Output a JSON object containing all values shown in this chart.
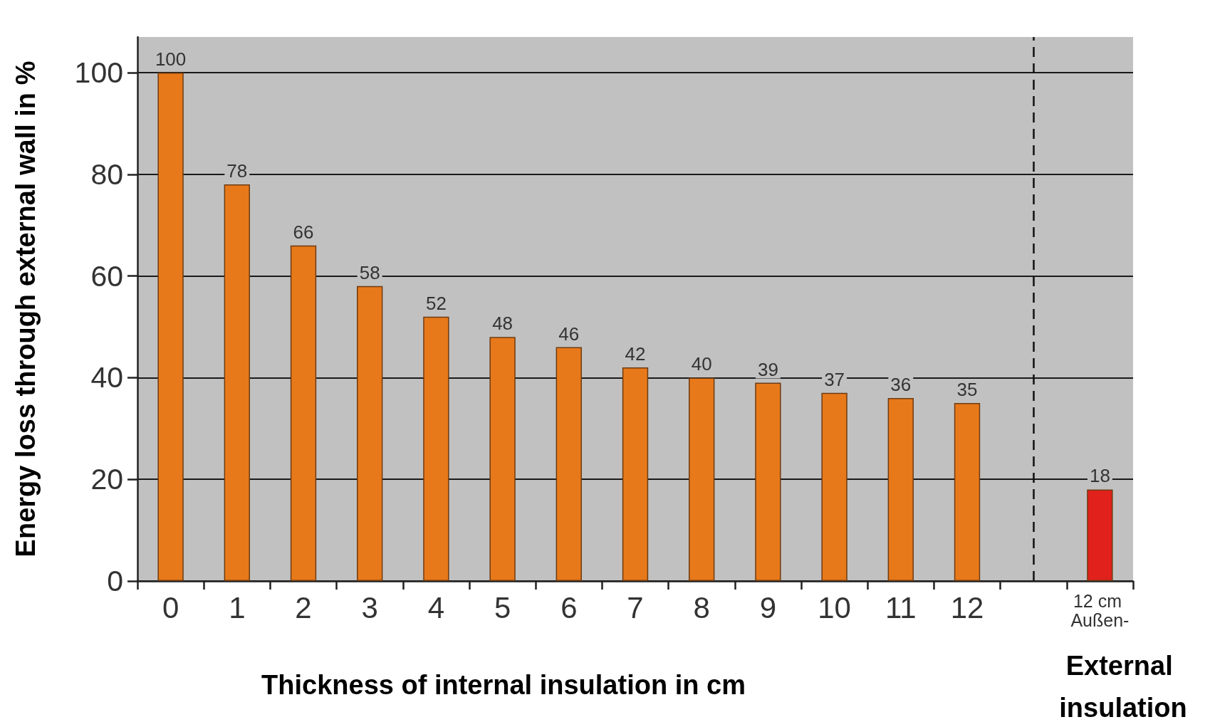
{
  "chart_data": {
    "type": "bar",
    "xlabel": "Thickness of internal insulation in cm",
    "ylabel": "Energy loss through external wall in %",
    "x": [
      0,
      1,
      2,
      3,
      4,
      5,
      6,
      7,
      8,
      9,
      10,
      11,
      12,
      14
    ],
    "values": [
      100,
      78,
      66,
      58,
      52,
      48,
      46,
      42,
      40,
      39,
      37,
      36,
      35,
      18
    ],
    "colors": [
      "#e8791a",
      "#e8791a",
      "#e8791a",
      "#e8791a",
      "#e8791a",
      "#e8791a",
      "#e8791a",
      "#e8791a",
      "#e8791a",
      "#e8791a",
      "#e8791a",
      "#e8791a",
      "#e8791a",
      "#e0211c"
    ],
    "data_labels": true,
    "xlim": [
      -0.5,
      14.5
    ],
    "xticks": [
      {
        "value": -0.5,
        "label": null
      },
      0,
      {
        "value": 0.5,
        "label": null
      },
      1,
      {
        "value": 1.5,
        "label": null
      },
      2,
      {
        "value": 2.5,
        "label": null
      },
      3,
      {
        "value": 3.5,
        "label": null
      },
      4,
      {
        "value": 4.5,
        "label": null
      },
      5,
      {
        "value": 5.5,
        "label": null
      },
      6,
      {
        "value": 6.5,
        "label": null
      },
      7,
      {
        "value": 7.5,
        "label": null
      },
      8,
      {
        "value": 8.5,
        "label": null
      },
      9,
      {
        "value": 9.5,
        "label": null
      },
      10,
      {
        "value": 10.5,
        "label": null
      },
      11,
      {
        "value": 11.5,
        "label": null
      },
      12,
      {
        "value": 12.5,
        "label": null
      },
      {
        "value": 13.5,
        "label": null
      },
      {
        "value": 14.5,
        "label": null
      }
    ],
    "ylim": [
      0,
      107
    ],
    "yticks": [
      0,
      20,
      40,
      60,
      80,
      100
    ],
    "grid": "y",
    "ref_lines": [
      {
        "axis": "x",
        "value": 13,
        "color": "#111111",
        "line_style": "dashed"
      }
    ],
    "annotations": [
      {
        "text": "12 cm Außen-",
        "x": 14,
        "y": 0
      },
      "External insulation"
    ]
  }
}
